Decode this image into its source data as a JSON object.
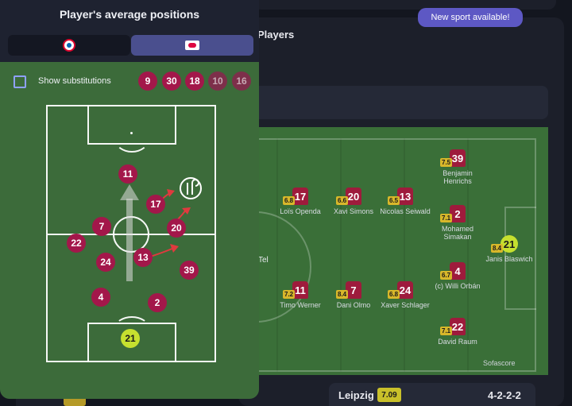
{
  "modal": {
    "title": "Player's average positions",
    "tabs": [
      {
        "team": "Bayern",
        "icon": "bayern-logo-icon",
        "active": false
      },
      {
        "team": "Leipzig",
        "icon": "rb-leipzig-logo-icon",
        "active": true
      }
    ],
    "show_substitutions_label": "Show substitutions",
    "show_substitutions_checked": false,
    "substitutes": [
      {
        "number": "9",
        "played": true
      },
      {
        "number": "30",
        "played": true
      },
      {
        "number": "18",
        "played": true
      },
      {
        "number": "10",
        "played": false
      },
      {
        "number": "16",
        "played": false
      }
    ],
    "players": [
      {
        "number": "11"
      },
      {
        "number": "17"
      },
      {
        "number": "7"
      },
      {
        "number": "20"
      },
      {
        "number": "22"
      },
      {
        "number": "24"
      },
      {
        "number": "13"
      },
      {
        "number": "39"
      },
      {
        "number": "4"
      },
      {
        "number": "2"
      },
      {
        "number": "21",
        "goalkeeper": true
      }
    ],
    "colors": {
      "player": "#a3174a",
      "goalkeeper": "#c6e02f",
      "arrow": "#e03a3e"
    }
  },
  "background": {
    "section_title": "Players",
    "toast": "New sport available!",
    "other_label": "Tel",
    "lineup": [
      {
        "number": "17",
        "rating": "6.8",
        "name": "Loïs Openda"
      },
      {
        "number": "20",
        "rating": "6.6",
        "name": "Xavi Simons"
      },
      {
        "number": "13",
        "rating": "6.5",
        "name": "Nicolas Seiwald"
      },
      {
        "number": "39",
        "rating": "7.5",
        "name": "Benjamin Henrichs"
      },
      {
        "number": "2",
        "rating": "7.1",
        "name": "Mohamed Simakan"
      },
      {
        "number": "21",
        "rating": "8.4",
        "name": "Janis Blaswich"
      },
      {
        "number": "11",
        "rating": "7.2",
        "name": "Timo Werner"
      },
      {
        "number": "7",
        "rating": "8.4",
        "name": "Dani Olmo"
      },
      {
        "number": "24",
        "rating": "6.8",
        "name": "Xaver Schlager"
      },
      {
        "number": "4",
        "rating": "6.7",
        "name": "(c) Willi Orbán"
      },
      {
        "number": "22",
        "rating": "7.1",
        "name": "David Raum"
      }
    ],
    "watermark": "Sofascore",
    "team_bar": {
      "team": "Leipzig",
      "rating": "7.09",
      "formation": "4-2-2-2"
    }
  }
}
